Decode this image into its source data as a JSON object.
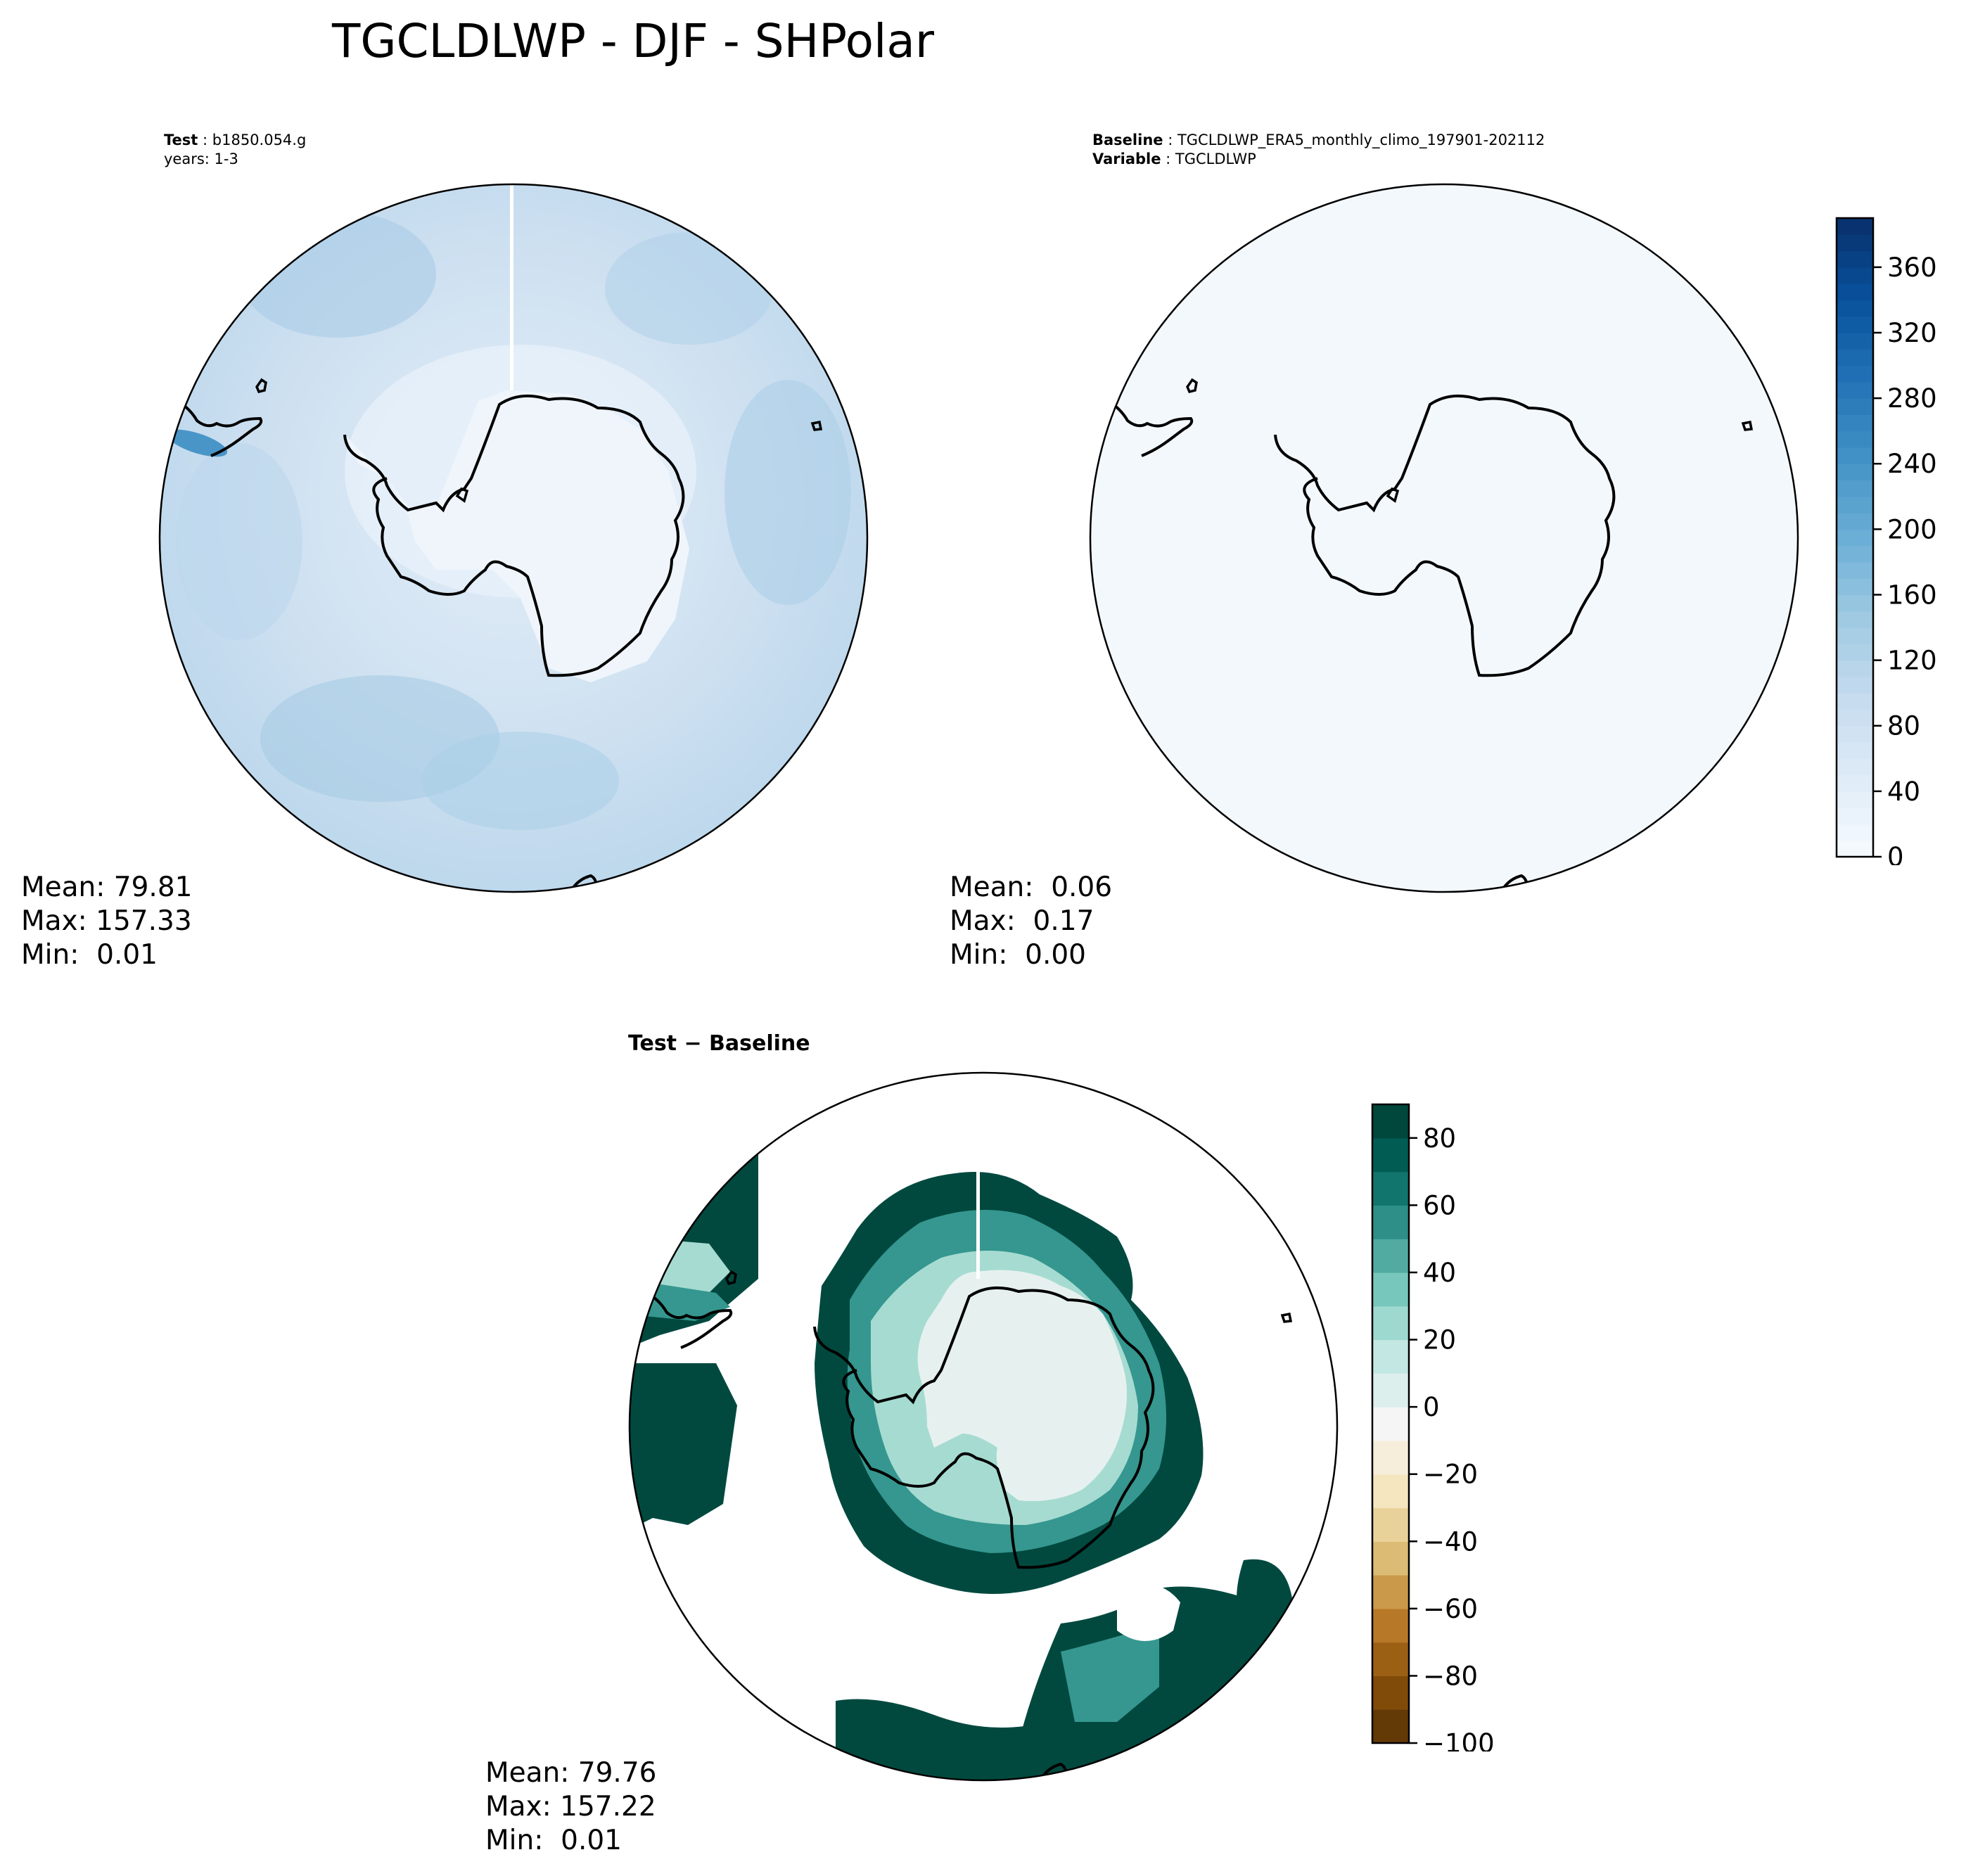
{
  "figure": {
    "title": "TGCLDLWP - DJF - SHPolar"
  },
  "panels": [
    {
      "id": "test",
      "header_line1_label": "Test",
      "header_line1_value": "b1850.054.g",
      "header_line2": "years: 1-3",
      "stats": {
        "mean": "Mean: 79.81",
        "max": "Max: 157.33",
        "min": "Min:  0.01"
      }
    },
    {
      "id": "baseline",
      "header_line1_label": "Baseline",
      "header_line1_value": "TGCLDLWP_ERA5_monthly_climo_197901-202112",
      "header_line2_label": "Variable",
      "header_line2_value": "TGCLDLWP",
      "stats": {
        "mean": "Mean:  0.06",
        "max": "Max:  0.17",
        "min": "Min:  0.00"
      }
    },
    {
      "id": "difference",
      "header": "Test − Baseline",
      "stats": {
        "mean": "Mean: 79.76",
        "max": "Max: 157.22",
        "min": "Min:  0.01"
      }
    }
  ],
  "colorbars": {
    "top": {
      "colormap": "Blues",
      "range": [
        0,
        390
      ],
      "ticks": [
        "0",
        "40",
        "80",
        "120",
        "160",
        "200",
        "240",
        "280",
        "320",
        "360"
      ],
      "colors": [
        "#f7fbff",
        "#deebf7",
        "#c6dbef",
        "#9ecae1",
        "#6baed6",
        "#4292c6",
        "#2171b5",
        "#08519c",
        "#08306b"
      ]
    },
    "bottom": {
      "colormap": "BrBG",
      "range": [
        -100,
        90
      ],
      "ticks": [
        "−100",
        "−80",
        "−60",
        "−40",
        "−20",
        "0",
        "20",
        "40",
        "60",
        "80"
      ],
      "colors": [
        "#543005",
        "#8c510a",
        "#bf812d",
        "#dfc27d",
        "#f6e8c3",
        "#f5f5f5",
        "#c7eae5",
        "#80cdc1",
        "#35978f",
        "#01665e",
        "#003c30"
      ]
    }
  },
  "map_colors": {
    "test_ocean": "#c6dbef",
    "test_land": "#eff5fb",
    "baseline_fill": "#f3f8fd",
    "diff_strong": "#01493f",
    "diff_mid": "#35978f",
    "diff_light": "#a6dbd1",
    "diff_land": "#e6f1ef"
  },
  "chart_data": {
    "type": "heatmap",
    "title": "TGCLDLWP - DJF - SHPolar",
    "projection": "south polar stereographic",
    "season": "DJF",
    "panels": [
      {
        "name": "Test",
        "case": "b1850.054.g",
        "years": "1-3",
        "mean": 79.81,
        "max": 157.33,
        "min": 0.01
      },
      {
        "name": "Baseline",
        "case": "TGCLDLWP_ERA5_monthly_climo_197901-202112",
        "variable": "TGCLDLWP",
        "mean": 0.06,
        "max": 0.17,
        "min": 0.0
      },
      {
        "name": "Test − Baseline",
        "mean": 79.76,
        "max": 157.22,
        "min": 0.01
      }
    ],
    "colorbar_top": {
      "cmap": "Blues",
      "levels": [
        0,
        390
      ],
      "ticks": [
        0,
        40,
        80,
        120,
        160,
        200,
        240,
        280,
        320,
        360
      ]
    },
    "colorbar_bottom": {
      "cmap": "BrBG",
      "levels": [
        -100,
        90
      ],
      "ticks": [
        -100,
        -80,
        -60,
        -40,
        -20,
        0,
        20,
        40,
        60,
        80
      ]
    }
  }
}
